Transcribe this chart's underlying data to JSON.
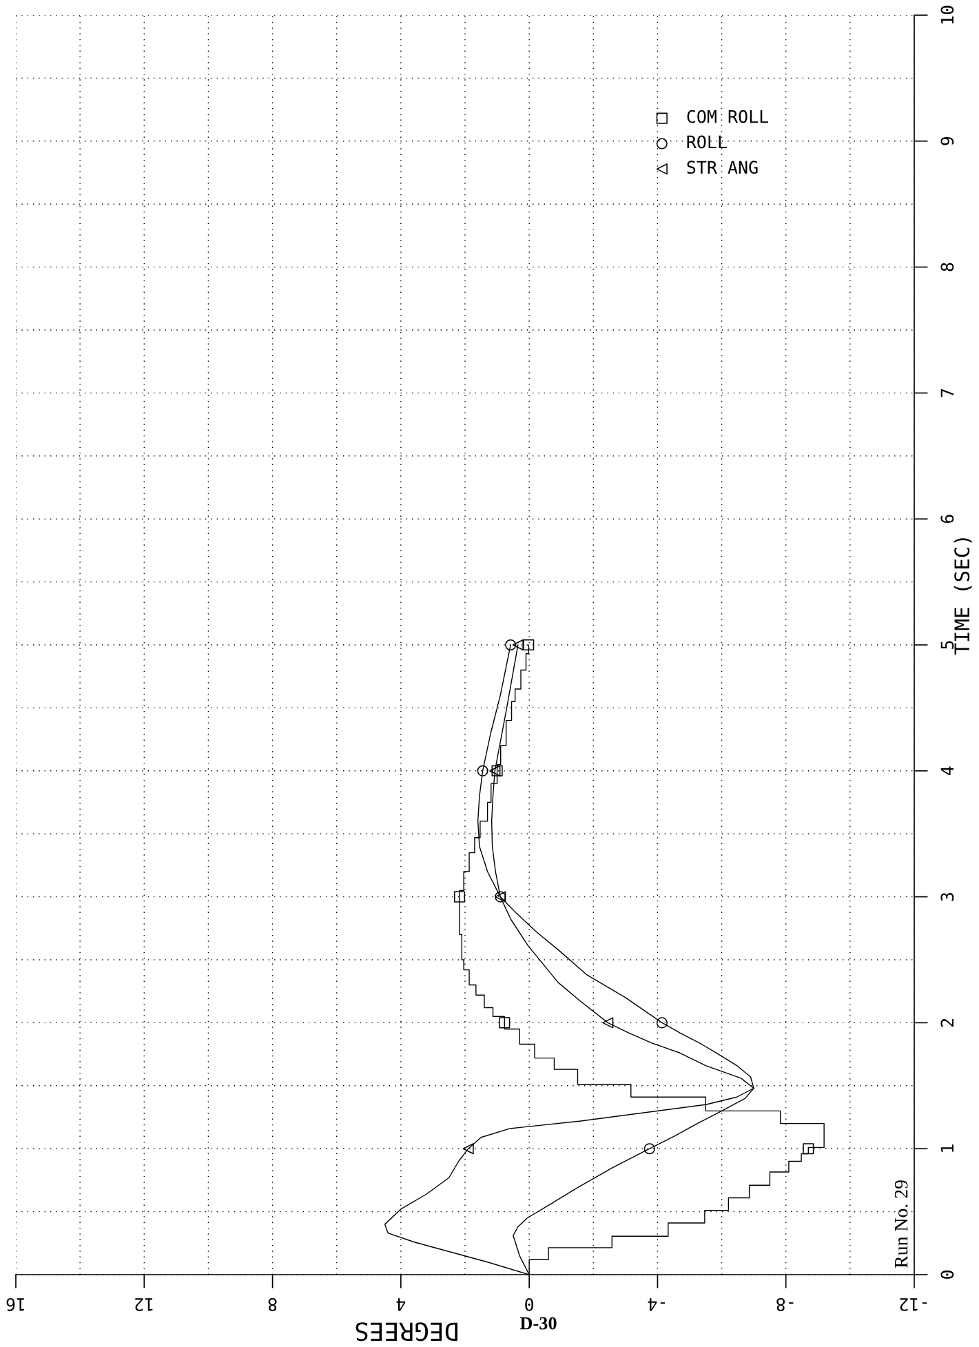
{
  "chart_data": {
    "type": "line",
    "xlabel": "DEGREES",
    "ylabel": "TIME (SEC)",
    "xlim": [
      16,
      -12
    ],
    "xticks": [
      16,
      {
        "value": 14,
        "label": null
      },
      12,
      {
        "value": 10,
        "label": null
      },
      8,
      {
        "value": 6,
        "label": null
      },
      4,
      {
        "value": 2,
        "label": null
      },
      0,
      {
        "value": -2,
        "label": null
      },
      -4,
      {
        "value": -6,
        "label": null
      },
      -8,
      {
        "value": -10,
        "label": null
      },
      -12
    ],
    "ylim": [
      0,
      10
    ],
    "yticks": [
      0,
      {
        "value": 0.5,
        "label": null
      },
      1,
      {
        "value": 1.5,
        "label": null
      },
      2,
      {
        "value": 2.5,
        "label": null
      },
      3,
      {
        "value": 3.5,
        "label": null
      },
      4,
      {
        "value": 4.5,
        "label": null
      },
      5,
      {
        "value": 5.5,
        "label": null
      },
      6,
      {
        "value": 6.5,
        "label": null
      },
      7,
      {
        "value": 7.5,
        "label": null
      },
      8,
      {
        "value": 8.5,
        "label": null
      },
      9,
      {
        "value": 9.5,
        "label": null
      },
      10
    ],
    "grid": true,
    "legend": "top right",
    "annotations": [
      "Run No. 29",
      "D-30"
    ],
    "series": [
      {
        "color": "#000000",
        "x": [
          0,
          0,
          -0.6,
          -0.6,
          -2.58,
          -2.58,
          -4.33,
          -4.33,
          -5.47,
          -5.47,
          -6.21,
          -6.21,
          -6.86,
          -6.86,
          -7.5,
          -7.5,
          -8.09,
          -8.09,
          -8.48,
          -8.48,
          -8.7,
          -8.7,
          -9.19,
          -9.19,
          -7.83,
          -7.83,
          -5.5,
          -5.5,
          -3.17,
          -3.17,
          -1.51,
          -1.51,
          -0.78,
          -0.78,
          -0.17,
          -0.17,
          0.3,
          0.3,
          0.77,
          0.77,
          1.13,
          1.13,
          1.4,
          1.4,
          1.66,
          1.66,
          1.87,
          1.87,
          2.04,
          2.04,
          2.1,
          2.1,
          2.17,
          2.17,
          2.04,
          2.04,
          1.87,
          1.87,
          1.7,
          1.7,
          1.53,
          1.53,
          1.3,
          1.3,
          1.19,
          1.19,
          1.0,
          1.0,
          0.89,
          0.89,
          0.72,
          0.72,
          0.55,
          0.55,
          0.44,
          0.44,
          0.26,
          0.26,
          0.1,
          0.1,
          0.02,
          0.02
        ],
        "values": [
          0,
          0.12,
          0.12,
          0.214,
          0.214,
          0.305,
          0.305,
          0.41,
          0.41,
          0.51,
          0.51,
          0.61,
          0.61,
          0.71,
          0.71,
          0.815,
          0.815,
          0.9,
          0.9,
          0.96,
          0.96,
          1.01,
          1.01,
          1.2,
          1.2,
          1.3,
          1.3,
          1.41,
          1.41,
          1.51,
          1.51,
          1.63,
          1.63,
          1.72,
          1.72,
          1.83,
          1.83,
          1.95,
          1.95,
          2.05,
          2.05,
          2.12,
          2.12,
          2.22,
          2.22,
          2.3,
          2.3,
          2.42,
          2.42,
          2.5,
          2.5,
          2.7,
          2.7,
          3.05,
          3.05,
          3.2,
          3.2,
          3.35,
          3.35,
          3.47,
          3.47,
          3.6,
          3.6,
          3.75,
          3.75,
          3.9,
          3.9,
          4.05,
          4.05,
          4.2,
          4.2,
          4.4,
          4.4,
          4.55,
          4.55,
          4.65,
          4.65,
          4.8,
          4.8,
          4.93,
          4.93,
          5.0
        ]
      },
      {
        "color": "#000000",
        "x": [
          0,
          0.3,
          0.5,
          0.35,
          0.06,
          -0.6,
          -1.5,
          -2.6,
          -3.75,
          -4.53,
          -5.24,
          -6.0,
          -6.73,
          -7.0,
          -6.9,
          -6.47,
          -5.9,
          -5.37,
          -4.7,
          -4.14,
          -3.0,
          -1.8,
          -0.9,
          -0.23,
          0.4,
          0.9,
          1.3,
          1.55,
          1.6,
          1.55,
          1.45,
          1.2,
          0.9,
          0.58
        ],
        "values": [
          0,
          0.15,
          0.31,
          0.38,
          0.45,
          0.55,
          0.69,
          0.85,
          1.0,
          1.1,
          1.2,
          1.3,
          1.4,
          1.48,
          1.57,
          1.66,
          1.75,
          1.83,
          1.92,
          2.0,
          2.2,
          2.38,
          2.58,
          2.72,
          2.87,
          3.0,
          3.2,
          3.4,
          3.6,
          3.8,
          4.0,
          4.3,
          4.6,
          5.0
        ]
      },
      {
        "color": "#000000",
        "x": [
          0,
          1.3,
          2.6,
          3.6,
          4.4,
          4.5,
          4.0,
          3.2,
          2.5,
          2.2,
          1.9,
          1.5,
          0.6,
          -1.61,
          -5.5,
          -6.47,
          -7.0,
          -6.6,
          -5.5,
          -4.7,
          -3.81,
          -3.1,
          -2.45,
          -1.6,
          -0.9,
          0.03,
          0.57,
          0.9,
          1.05,
          1.15,
          1.17,
          1.13,
          1.07,
          0.7,
          0.35
        ],
        "values": [
          0,
          0.1,
          0.19,
          0.26,
          0.33,
          0.4,
          0.52,
          0.64,
          0.77,
          0.9,
          1.0,
          1.09,
          1.16,
          1.22,
          1.35,
          1.41,
          1.48,
          1.56,
          1.66,
          1.76,
          1.84,
          1.92,
          2.0,
          2.17,
          2.32,
          2.61,
          2.82,
          3.0,
          3.2,
          3.4,
          3.6,
          3.8,
          4.0,
          4.5,
          5.0
        ]
      },
      {
        "type": "scatter",
        "name": "COM ROLL",
        "marker": "square",
        "color": "#000000",
        "x": [
          -8.7,
          0.77,
          2.17,
          1.0,
          0.02
        ],
        "values": [
          1,
          2,
          3,
          4,
          5
        ]
      },
      {
        "type": "scatter",
        "name": "ROLL",
        "marker": "circle",
        "color": "#000000",
        "x": [
          -3.75,
          -4.14,
          0.9,
          1.45,
          0.58
        ],
        "values": [
          1,
          2,
          3,
          4,
          5
        ]
      },
      {
        "type": "scatter",
        "name": "STR ANG",
        "marker": "triangle",
        "color": "#000000",
        "x": [
          1.9,
          -2.45,
          0.9,
          1.07,
          0.35
        ],
        "values": [
          1,
          2,
          3,
          4,
          5
        ]
      }
    ]
  }
}
